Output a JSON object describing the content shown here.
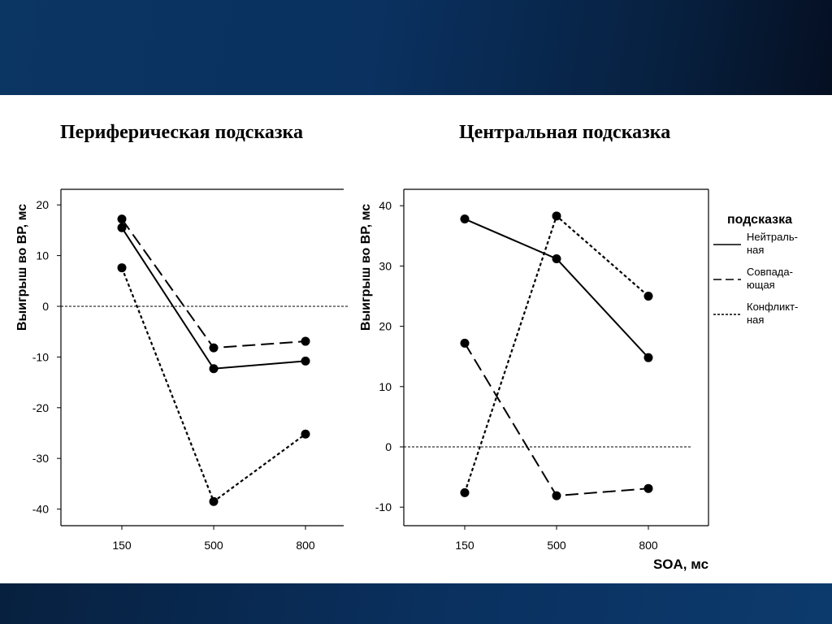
{
  "slide": {
    "title_left": "Периферическая подсказка",
    "title_right": "Центральная подсказка"
  },
  "chart_data": [
    {
      "type": "line",
      "title": "Периферическая подсказка",
      "xlabel": "",
      "ylabel": "Выигрыш во ВР, мс",
      "categories": [
        "150",
        "500",
        "800"
      ],
      "ylim": [
        -43,
        25
      ],
      "yticks": [
        20,
        10,
        0,
        -10,
        -20,
        -30,
        -40
      ],
      "ytick_labels": [
        "20",
        "10",
        "0",
        "-10",
        "-20",
        "-30",
        "-40"
      ],
      "reference_line": 0,
      "grid": false,
      "series": [
        {
          "values": [
            15.5,
            -12.3,
            -10.8
          ],
          "style": "solid"
        },
        {
          "values": [
            17.2,
            -8.2,
            -6.9
          ],
          "style": "dashed"
        },
        {
          "values": [
            7.6,
            -38.5,
            -25.2
          ],
          "style": "dotted"
        }
      ]
    },
    {
      "type": "line",
      "title": "Центральная подсказка",
      "xlabel": "SOA, мс",
      "ylabel": "Выигрыш во ВР, мс",
      "categories": [
        "150",
        "500",
        "800"
      ],
      "ylim": [
        -12.5,
        43
      ],
      "yticks": [
        40,
        30,
        20,
        10,
        0,
        -10
      ],
      "ytick_labels": [
        "40",
        "30",
        "20",
        "10",
        "0",
        "-10"
      ],
      "reference_line": 0,
      "grid": false,
      "legend": {
        "title": "подсказка",
        "placement": "right",
        "items": [
          {
            "label": "Нейтраль-\nная",
            "style": "solid"
          },
          {
            "label": "Совпада-\nющая",
            "style": "dashed"
          },
          {
            "label": "Конфликт-\nная",
            "style": "dotted"
          }
        ]
      },
      "series": [
        {
          "name": "Нейтральная",
          "values": [
            37.8,
            31.2,
            14.8
          ],
          "style": "solid"
        },
        {
          "name": "Совпадающая",
          "values": [
            17.2,
            -8.1,
            -6.9
          ],
          "style": "dashed"
        },
        {
          "name": "Конфликтная",
          "values": [
            -7.6,
            38.3,
            25.0
          ],
          "style": "dotted"
        }
      ]
    }
  ]
}
